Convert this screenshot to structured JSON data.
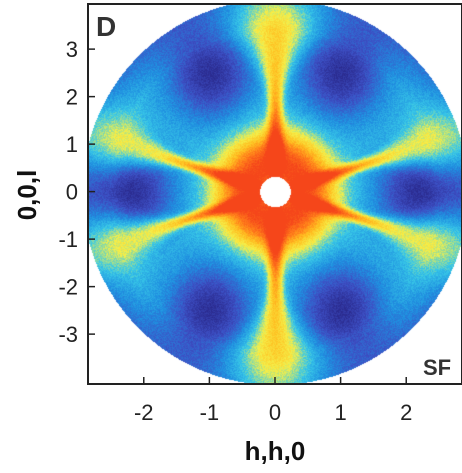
{
  "chart_data": {
    "type": "heatmap",
    "panel_label": "D",
    "corner_label": "SF",
    "xlabel": "h,h,0",
    "ylabel": "0,0,l",
    "xlim": [
      -2.85,
      2.85
    ],
    "ylim": [
      -4.05,
      3.95
    ],
    "x_ticks": [
      -2,
      -1,
      0,
      1,
      2
    ],
    "x_tick_labels": [
      "-2",
      "-1",
      "0",
      "1",
      "2"
    ],
    "y_ticks": [
      -3,
      -2,
      -1,
      0,
      1,
      2,
      3
    ],
    "y_tick_labels": [
      "-3",
      "-2",
      "-1",
      "0",
      "1",
      "2",
      "3"
    ],
    "colormap": [
      "#2a2a8e",
      "#3d4fc4",
      "#1f8fe0",
      "#38c8e8",
      "#f5f04a",
      "#ffc021",
      "#ff7a1a",
      "#f5461a"
    ],
    "features": {
      "ring_radius_q": 4.0,
      "hole_radius_q": 0.32,
      "arm_angles_deg": [
        90,
        270,
        20,
        160,
        200,
        340
      ],
      "low_intensity_centers": [
        {
          "h": -2.2,
          "l": 0.0
        },
        {
          "h": 2.2,
          "l": 0.0
        },
        {
          "h": -1.0,
          "l": 2.5
        },
        {
          "h": 1.0,
          "l": 2.5
        },
        {
          "h": -1.0,
          "l": -2.5
        },
        {
          "h": 1.0,
          "l": -2.5
        }
      ]
    }
  }
}
